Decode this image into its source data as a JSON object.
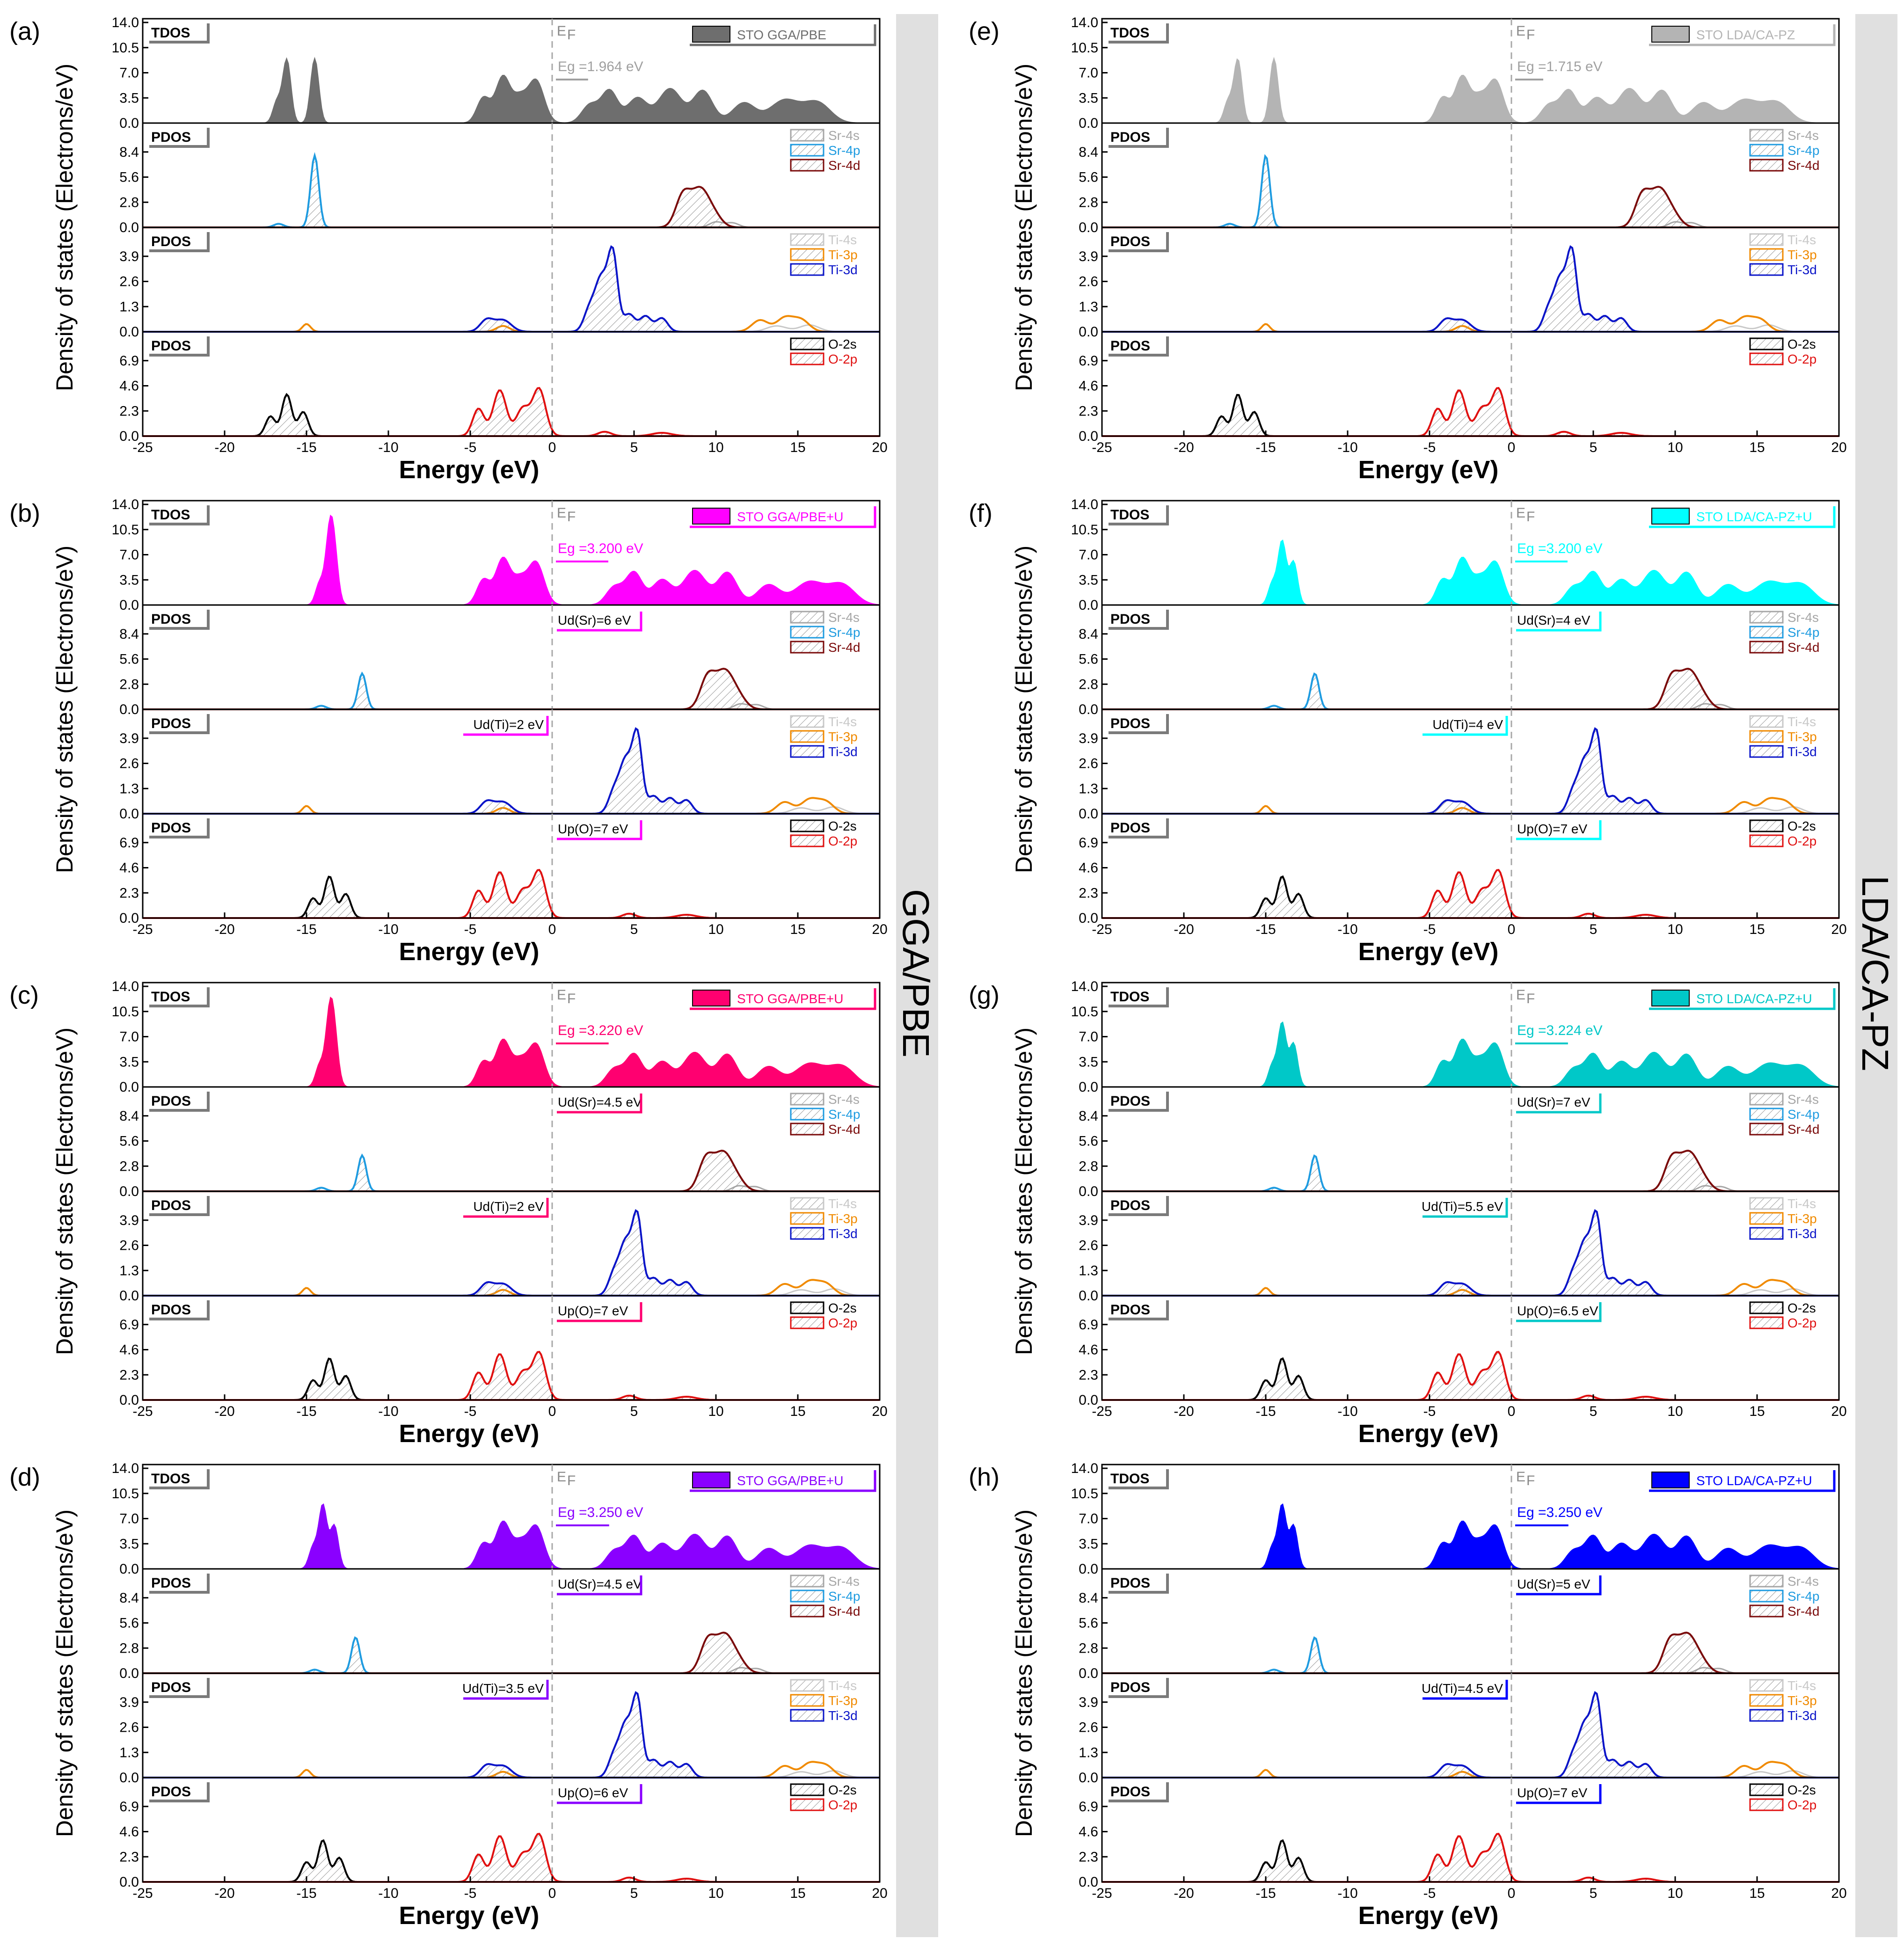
{
  "figure": {
    "ylabel": "Density of states (Electrons/eV)",
    "xlabel": "Energy (eV)",
    "side_labels": [
      "GGA/PBE",
      "LDA/CA-PZ"
    ],
    "x_ticks": [
      "-25",
      "-20",
      "-15",
      "-10",
      "-5",
      "0",
      "5",
      "10",
      "15",
      "20"
    ],
    "ef_label": "E",
    "ef_sub": "F",
    "tdos_tag": "TDOS",
    "pdos_tag": "PDOS"
  },
  "chart_data": {
    "type": "area",
    "xlim": [
      -25,
      20
    ],
    "sections": [
      {
        "kind": "TDOS",
        "yticks": [
          "0.0",
          "3.5",
          "7.0",
          "10.5",
          "14.0"
        ],
        "ymax": 14.0
      },
      {
        "kind": "PDOS-Sr",
        "yticks": [
          "0.0",
          "2.8",
          "5.6",
          "8.4"
        ],
        "ymax": 11.2,
        "legend": [
          "Sr-4s",
          "Sr-4p",
          "Sr-4d"
        ],
        "colors": [
          "#a6a6a6",
          "#1e9be0",
          "#7a0a0a"
        ]
      },
      {
        "kind": "PDOS-Ti",
        "yticks": [
          "0.0",
          "1.3",
          "2.6",
          "3.9"
        ],
        "ymax": 5.2,
        "legend": [
          "Ti-4s",
          "Ti-3p",
          "Ti-3d"
        ],
        "colors": [
          "#c8c8c8",
          "#f08a00",
          "#0a14c8"
        ]
      },
      {
        "kind": "PDOS-O",
        "yticks": [
          "0.0",
          "2.3",
          "4.6",
          "6.9"
        ],
        "ymax": 9.2,
        "legend": [
          "O-2s",
          "O-2p"
        ],
        "colors": [
          "#000000",
          "#e01010"
        ]
      }
    ],
    "panels": [
      {
        "id": "(a)",
        "legend": "STO GGA/PBE",
        "color": "#6e6e6e",
        "gap": "1.964 eV",
        "u_sr": "",
        "u_ti": "",
        "u_o": "",
        "shift": 1.7,
        "sr_shift": 0,
        "o2s": -16.2
      },
      {
        "id": "(b)",
        "legend": "STO GGA/PBE+U",
        "color": "#ff00ff",
        "gap": "3.200 eV",
        "u_sr": "Ud(Sr)=6 eV",
        "u_ti": "Ud(Ti)=2 eV",
        "u_o": "Up(O)=7 eV",
        "shift": 3.2,
        "sr_shift": 1.5,
        "o2s": -13.6
      },
      {
        "id": "(c)",
        "legend": "STO GGA/PBE+U",
        "color": "#ff0070",
        "gap": "3.220 eV",
        "u_sr": "Ud(Sr)=4.5 eV",
        "u_ti": "Ud(Ti)=2 eV",
        "u_o": "Up(O)=7 eV",
        "shift": 3.2,
        "sr_shift": 1.4,
        "o2s": -13.6
      },
      {
        "id": "(d)",
        "legend": "STO GGA/PBE+U",
        "color": "#8a00ff",
        "gap": "3.250 eV",
        "u_sr": "Ud(Sr)=4.5 eV",
        "u_ti": "Ud(Ti)=3.5 eV",
        "u_o": "Up(O)=6 eV",
        "shift": 3.2,
        "sr_shift": 1.5,
        "o2s": -14.0
      },
      {
        "id": "(e)",
        "legend": "STO LDA/CA-PZ",
        "color": "#b4b4b4",
        "gap": "1.715 eV",
        "u_sr": "",
        "u_ti": "",
        "u_o": "",
        "shift": 1.7,
        "sr_shift": 0,
        "o2s": -16.7
      },
      {
        "id": "(f)",
        "legend": "STO LDA/CA-PZ+U",
        "color": "#00ffff",
        "gap": "3.200 eV",
        "u_sr": "Ud(Sr)=4 eV",
        "u_ti": "Ud(Ti)=4 eV",
        "u_o": "Up(O)=7 eV",
        "shift": 3.2,
        "sr_shift": 1.8,
        "o2s": -14.0
      },
      {
        "id": "(g)",
        "legend": "STO LDA/CA-PZ+U",
        "color": "#00c8c8",
        "gap": "3.224 eV",
        "u_sr": "Ud(Sr)=7 eV",
        "u_ti": "Ud(Ti)=5.5 eV",
        "u_o": "Up(O)=6.5 eV",
        "shift": 3.2,
        "sr_shift": 1.8,
        "o2s": -14.0
      },
      {
        "id": "(h)",
        "legend": "STO LDA/CA-PZ+U",
        "color": "#0000ff",
        "gap": "3.250 eV",
        "u_sr": "Ud(Sr)=5 eV",
        "u_ti": "Ud(Ti)=4.5 eV",
        "u_o": "Up(O)=7 eV",
        "shift": 3.2,
        "sr_shift": 1.7,
        "o2s": -14.0
      }
    ]
  }
}
